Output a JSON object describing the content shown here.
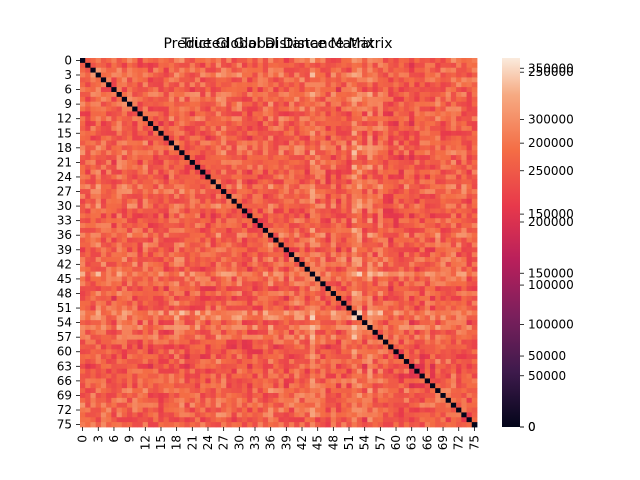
{
  "chart_data": {
    "type": "heatmap",
    "titles": [
      "Predicted Global Distance Matrix",
      "True Global Distance Matrix"
    ],
    "size": 76,
    "tick_labels": [
      "0",
      "3",
      "6",
      "9",
      "12",
      "15",
      "18",
      "21",
      "24",
      "27",
      "30",
      "33",
      "36",
      "39",
      "42",
      "45",
      "48",
      "51",
      "54",
      "57",
      "60",
      "63",
      "66",
      "69",
      "72",
      "75"
    ],
    "tick_step": 3,
    "diagonal_value": 0,
    "typical_value_range": [
      140000,
      230000
    ],
    "bright_rows_cols": [
      44,
      52,
      53,
      55
    ],
    "colormap": "rocket",
    "colorbar_sets": [
      {
        "max": 260000,
        "ticks": [
          0,
          50000,
          100000,
          150000,
          200000,
          250000
        ]
      },
      {
        "max": 360000,
        "ticks": [
          0,
          50000,
          100000,
          150000,
          200000,
          250000,
          300000,
          350000
        ]
      }
    ],
    "grid": false,
    "legend": "colorbar-right"
  }
}
